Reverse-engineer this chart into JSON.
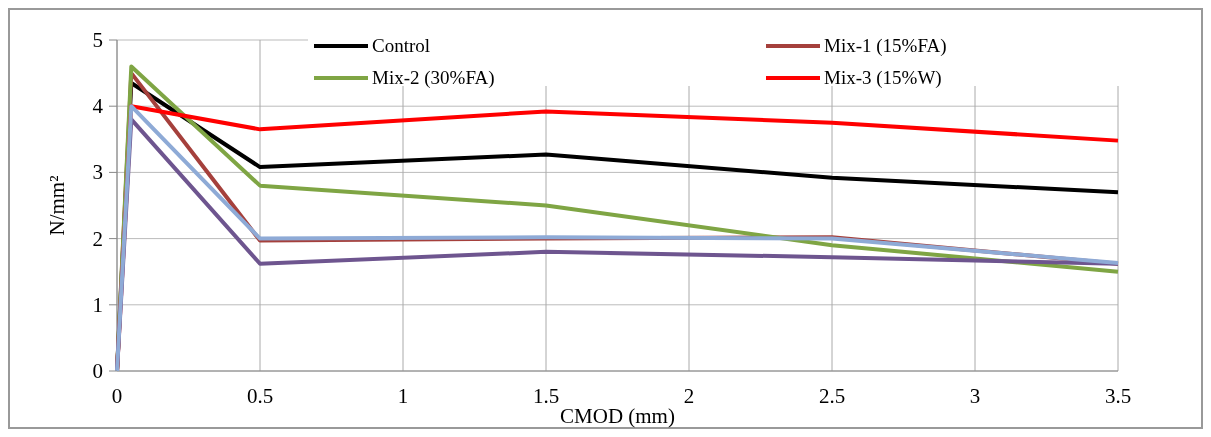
{
  "chart_data": {
    "type": "line",
    "xlabel": "CMOD (mm)",
    "ylabel": "N/mm²",
    "x": [
      0,
      0.05,
      0.5,
      1.5,
      2.5,
      3.5
    ],
    "xlim": [
      0,
      3.5
    ],
    "xticks": [
      0,
      0.5,
      1,
      1.5,
      2,
      2.5,
      3,
      3.5
    ],
    "ylim": [
      0,
      5
    ],
    "yticks": [
      0,
      1,
      2,
      3,
      4,
      5
    ],
    "grid": true,
    "legend": "top",
    "series": [
      {
        "name": "Control",
        "color": "#000000",
        "values": [
          0,
          4.35,
          3.08,
          3.27,
          2.92,
          2.7
        ]
      },
      {
        "name": "Mix-1 (15%FA)",
        "color": "#a5403c",
        "values": [
          0,
          4.5,
          1.97,
          2.0,
          2.02,
          1.62
        ]
      },
      {
        "name": "Mix-2 (30%FA)",
        "color": "#7fa544",
        "values": [
          0,
          4.6,
          2.8,
          2.5,
          1.9,
          1.5
        ]
      },
      {
        "name": "Mix-3 (15%W)",
        "color": "#ff0000",
        "values": [
          0,
          4.0,
          3.65,
          3.92,
          3.75,
          3.48
        ]
      },
      {
        "color": "#6e558f",
        "values": [
          0,
          3.8,
          1.62,
          1.8,
          1.72,
          1.62
        ]
      },
      {
        "color": "#8eaad6",
        "values": [
          0,
          4.0,
          2.0,
          2.02,
          2.0,
          1.63
        ]
      }
    ]
  }
}
